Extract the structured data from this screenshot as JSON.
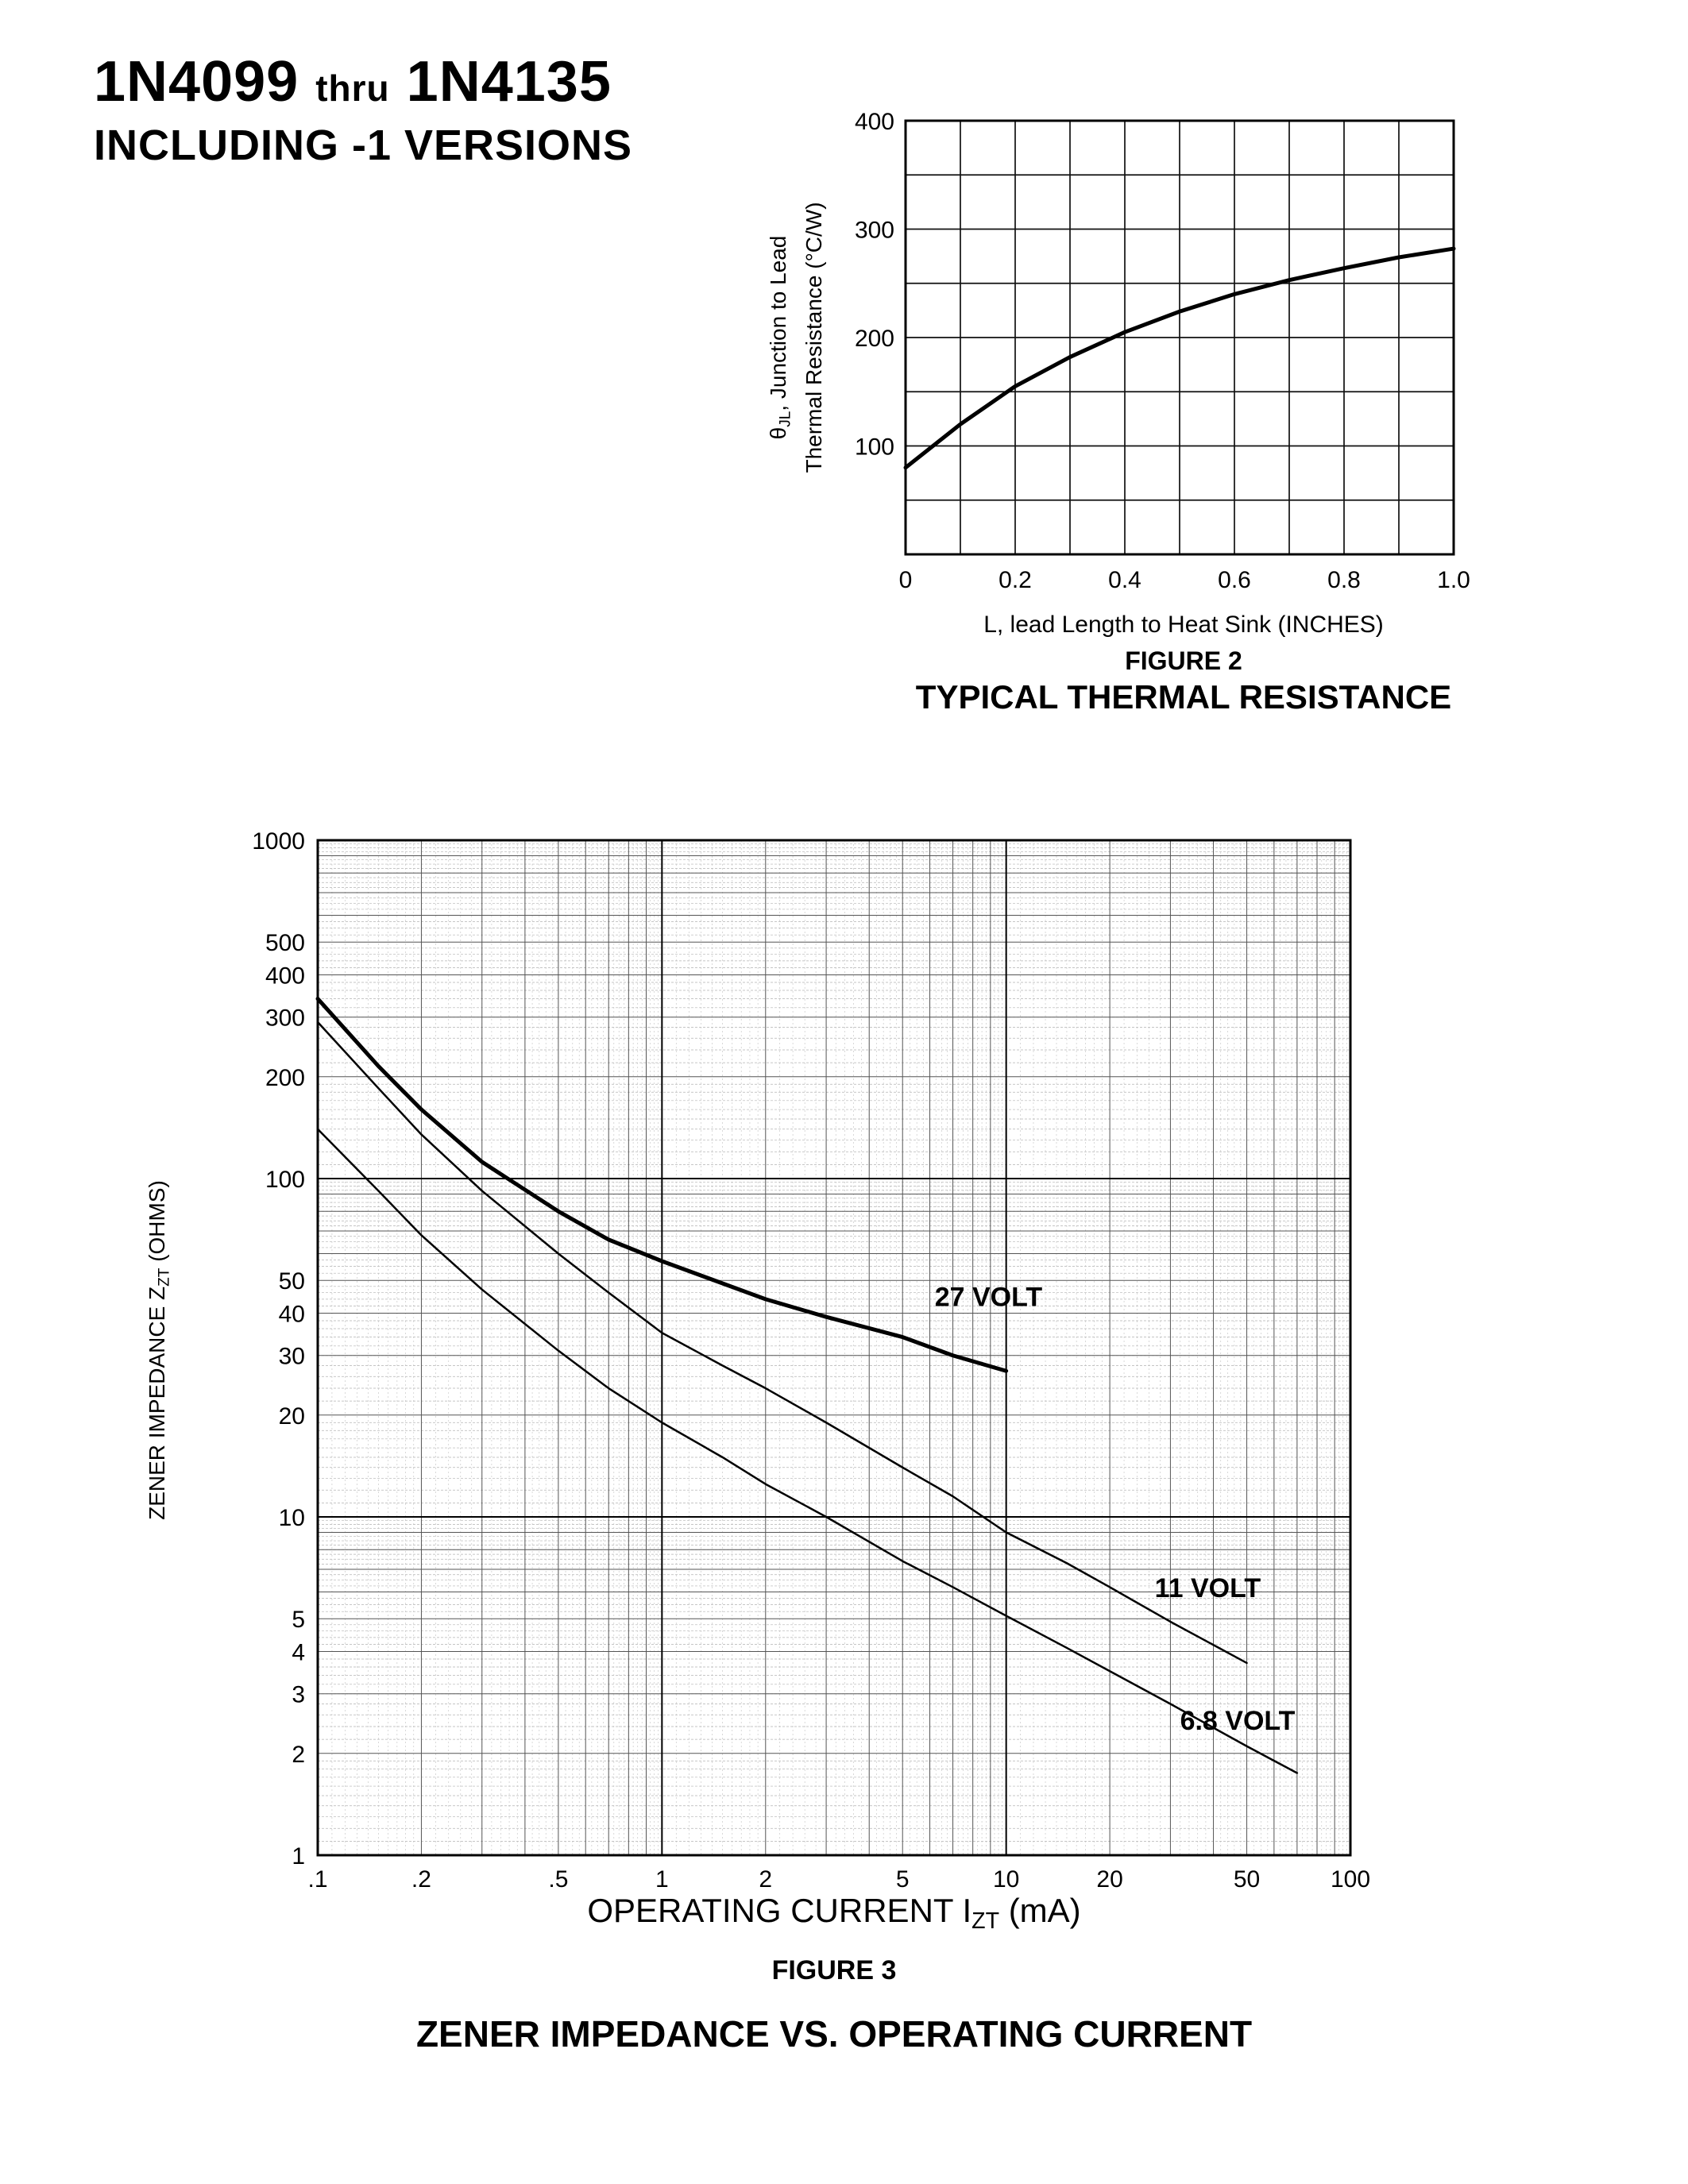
{
  "page": {
    "title_part1": "1N4099",
    "title_thru": "thru",
    "title_part2": "1N4135",
    "subtitle": "INCLUDING -1 VERSIONS"
  },
  "chart_data": [
    {
      "id": "figure2",
      "type": "line",
      "figure_label": "FIGURE 2",
      "title": "TYPICAL THERMAL RESISTANCE",
      "xlabel": "L, lead Length to Heat Sink (INCHES)",
      "ylabel": "θJL, Junction to Lead Thermal Resistance (°C/W)",
      "ylabel_lines": [
        {
          "parts": [
            {
              "text": "θ"
            },
            {
              "text": "JL",
              "sub": true
            },
            {
              "text": ", Junction to Lead"
            }
          ]
        },
        {
          "parts": [
            {
              "text": "Thermal Resistance (°C/W)"
            }
          ]
        }
      ],
      "x_scale": "linear",
      "y_scale": "linear",
      "xlim": [
        0,
        1.0
      ],
      "ylim": [
        0,
        400
      ],
      "x_minor_step": 0.1,
      "y_minor_step": 50,
      "grid": true,
      "x_ticks": [
        {
          "v": 0,
          "label": "0"
        },
        {
          "v": 0.2,
          "label": "0.2"
        },
        {
          "v": 0.4,
          "label": "0.4"
        },
        {
          "v": 0.6,
          "label": "0.6"
        },
        {
          "v": 0.8,
          "label": "0.8"
        },
        {
          "v": 1.0,
          "label": "1.0"
        }
      ],
      "y_ticks": [
        {
          "v": 400,
          "label": "400"
        },
        {
          "v": 300,
          "label": "300"
        },
        {
          "v": 200,
          "label": "200"
        },
        {
          "v": 100,
          "label": "100"
        }
      ],
      "series": [
        {
          "name": "thermal resistance",
          "x": [
            0,
            0.1,
            0.2,
            0.3,
            0.4,
            0.5,
            0.6,
            0.7,
            0.8,
            0.9,
            1.0
          ],
          "y": [
            80,
            120,
            155,
            182,
            205,
            224,
            240,
            253,
            264,
            274,
            282
          ],
          "width": 5
        }
      ]
    },
    {
      "id": "figure3",
      "type": "line",
      "figure_label": "FIGURE 3",
      "title": "ZENER IMPEDANCE VS. OPERATING CURRENT",
      "xlabel": "OPERATING CURRENT IZT (mA)",
      "xlabel_parts": [
        {
          "text": "OPERATING CURRENT I"
        },
        {
          "text": "ZT",
          "sub": true
        },
        {
          "text": " (mA)"
        }
      ],
      "ylabel": "ZENER IMPEDANCE ZZT (OHMS)",
      "ylabel_parts": [
        {
          "text": "ZENER IMPEDANCE Z"
        },
        {
          "text": "ZT",
          "sub": true
        },
        {
          "text": " (OHMS)"
        }
      ],
      "x_scale": "log",
      "y_scale": "log",
      "xlim": [
        0.1,
        100
      ],
      "ylim": [
        1,
        1000
      ],
      "grid": true,
      "x_ticks": [
        {
          "v": 0.1,
          "label": ".1"
        },
        {
          "v": 0.2,
          "label": ".2"
        },
        {
          "v": 0.5,
          "label": ".5"
        },
        {
          "v": 1,
          "label": "1"
        },
        {
          "v": 2,
          "label": "2"
        },
        {
          "v": 5,
          "label": "5"
        },
        {
          "v": 10,
          "label": "10"
        },
        {
          "v": 20,
          "label": "20"
        },
        {
          "v": 50,
          "label": "50"
        },
        {
          "v": 100,
          "label": "100"
        }
      ],
      "y_ticks": [
        {
          "v": 1000,
          "label": "1000"
        },
        {
          "v": 500,
          "label": "500"
        },
        {
          "v": 400,
          "label": "400"
        },
        {
          "v": 300,
          "label": "300"
        },
        {
          "v": 200,
          "label": "200"
        },
        {
          "v": 100,
          "label": "100"
        },
        {
          "v": 50,
          "label": "50"
        },
        {
          "v": 40,
          "label": "40"
        },
        {
          "v": 30,
          "label": "30"
        },
        {
          "v": 20,
          "label": "20"
        },
        {
          "v": 10,
          "label": "10"
        },
        {
          "v": 5,
          "label": "5"
        },
        {
          "v": 4,
          "label": "4"
        },
        {
          "v": 3,
          "label": "3"
        },
        {
          "v": 2,
          "label": "2"
        },
        {
          "v": 1,
          "label": "1"
        }
      ],
      "series": [
        {
          "name": "27 VOLT",
          "label": "27 VOLT",
          "label_x": 6.2,
          "label_y": 42,
          "width": 5,
          "x": [
            0.1,
            0.15,
            0.2,
            0.3,
            0.5,
            0.7,
            1,
            1.5,
            2,
            3,
            5,
            7,
            10
          ],
          "y": [
            340,
            215,
            160,
            112,
            80,
            66,
            57,
            49,
            44,
            39,
            34,
            30,
            27
          ]
        },
        {
          "name": "11 VOLT",
          "label": "11 VOLT",
          "label_x": 27,
          "label_y": 5.8,
          "width": 2.5,
          "x": [
            0.1,
            0.15,
            0.2,
            0.3,
            0.5,
            0.7,
            1,
            1.5,
            2,
            3,
            5,
            7,
            10,
            15,
            20,
            30,
            50
          ],
          "y": [
            290,
            185,
            135,
            92,
            60,
            46,
            35,
            28,
            24,
            19,
            14,
            11.5,
            9,
            7.3,
            6.2,
            4.9,
            3.7
          ]
        },
        {
          "name": "6.8 VOLT",
          "label": "6.8 VOLT",
          "label_x": 32,
          "label_y": 2.35,
          "width": 2.5,
          "x": [
            0.1,
            0.15,
            0.2,
            0.3,
            0.5,
            0.7,
            1,
            1.5,
            2,
            3,
            5,
            7,
            10,
            15,
            20,
            30,
            50,
            70
          ],
          "y": [
            140,
            92,
            68,
            47,
            31,
            24,
            19,
            15,
            12.5,
            10,
            7.4,
            6.2,
            5.1,
            4.1,
            3.5,
            2.8,
            2.1,
            1.75
          ]
        }
      ]
    }
  ]
}
